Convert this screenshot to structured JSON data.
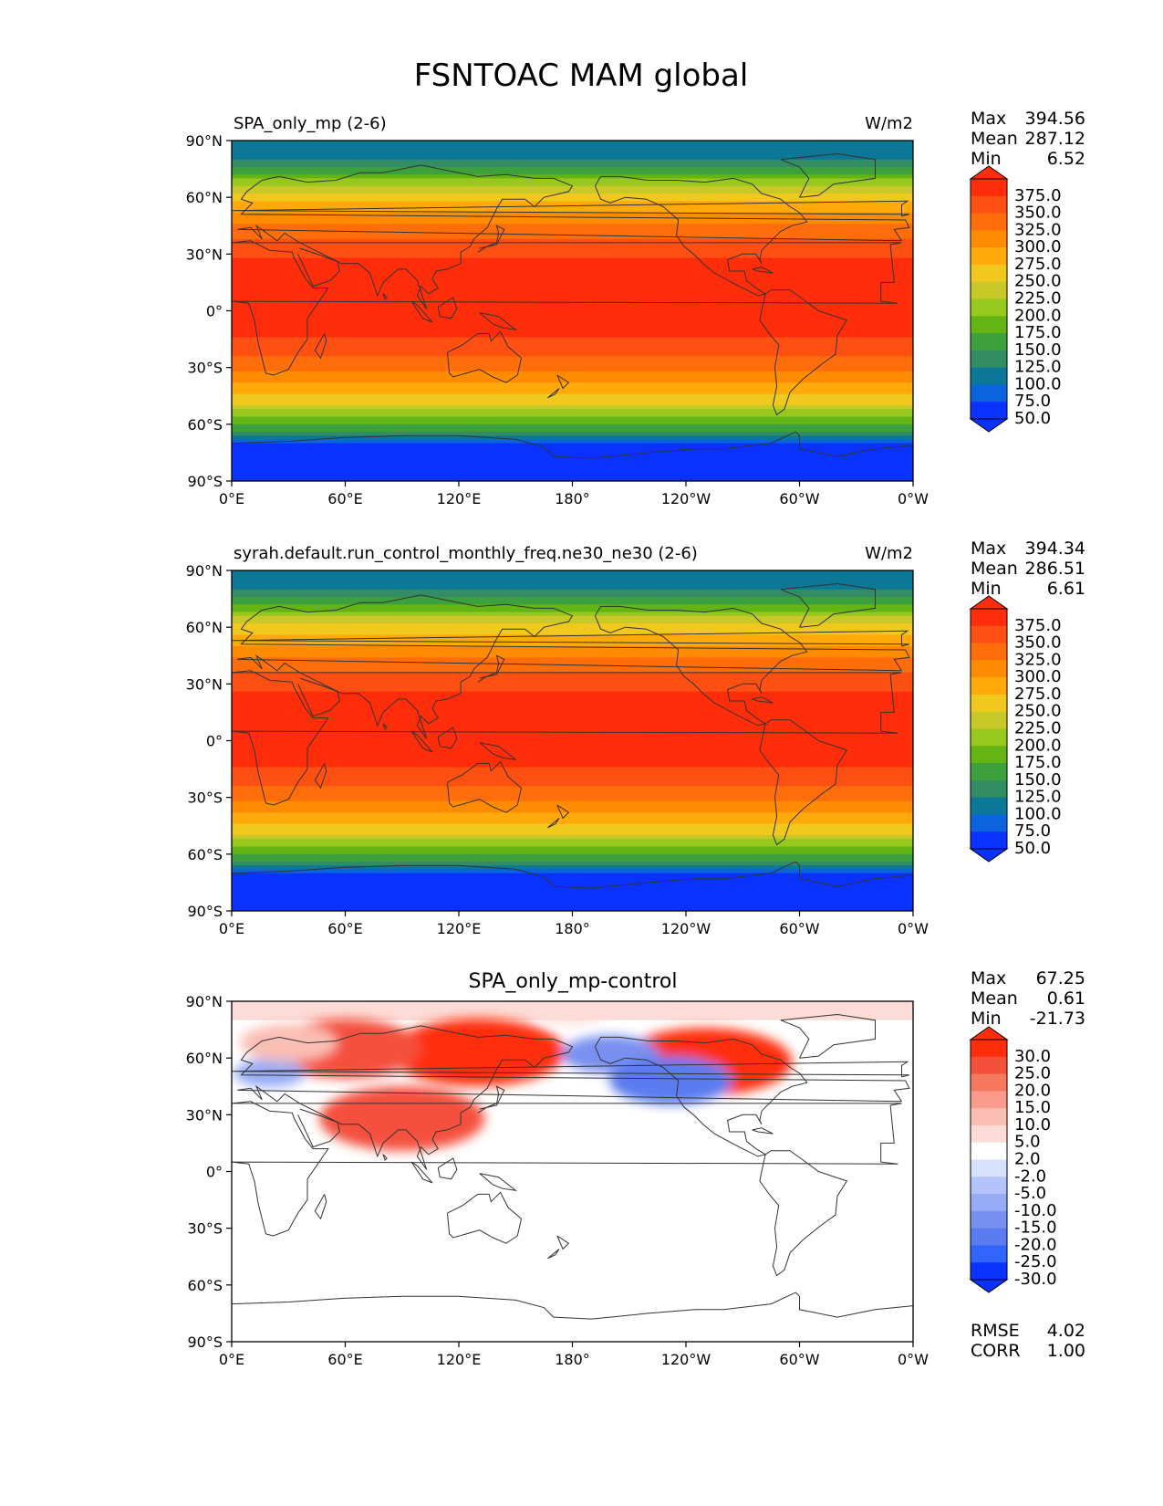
{
  "title": "FSNTOAC MAM global",
  "axes": {
    "lat_ticks": [
      "90°N",
      "60°N",
      "30°N",
      "0°",
      "30°S",
      "60°S",
      "90°S"
    ],
    "lon_ticks": [
      "0°E",
      "60°E",
      "120°E",
      "180°",
      "120°W",
      "60°W",
      "0°W"
    ]
  },
  "colors": {
    "abs_scale": [
      "#0a32ff",
      "#0a64dc",
      "#0a7896",
      "#328c64",
      "#3ca03c",
      "#64b414",
      "#96c81e",
      "#c8c828",
      "#f0c81e",
      "#ffaa0a",
      "#ff8c00",
      "#ff6e0a",
      "#ff5014",
      "#ff2d0a"
    ],
    "diff_scale": [
      "#0a32ff",
      "#3264ff",
      "#5a7cf0",
      "#7890f0",
      "#96aaf5",
      "#b4c3fa",
      "#d7e1fc",
      "#ffffff",
      "#fddcd7",
      "#fbbeb4",
      "#fa9b8c",
      "#f5785f",
      "#f5503c",
      "#ff2d0a"
    ],
    "coast": "#333333"
  },
  "chart_data": [
    {
      "type": "heatmap",
      "panel": "test",
      "title_left": "SPA_only_mp (2-6)",
      "units": "W/m2",
      "stats": {
        "max_label": "Max",
        "max": "394.56",
        "mean_label": "Mean",
        "mean": "287.12",
        "min_label": "Min",
        "min": "6.52"
      },
      "colorbar_ticks": [
        "375.0",
        "350.0",
        "325.0",
        "300.0",
        "275.0",
        "250.0",
        "225.0",
        "200.0",
        "175.0",
        "150.0",
        "125.0",
        "100.0",
        "75.0",
        "50.0"
      ],
      "colorbar_levels": [
        25,
        50,
        75,
        100,
        125,
        150,
        175,
        200,
        225,
        250,
        275,
        300,
        325,
        350,
        375,
        400
      ],
      "xlim": [
        0,
        360
      ],
      "ylim": [
        -90,
        90
      ],
      "zonal_profile": {
        "lat": [
          90,
          80,
          70,
          60,
          50,
          40,
          30,
          20,
          10,
          0,
          -10,
          -20,
          -30,
          -40,
          -50,
          -60,
          -65,
          -70,
          -90
        ],
        "value": [
          95,
          100,
          170,
          240,
          280,
          320,
          340,
          375,
          390,
          380,
          360,
          335,
          305,
          270,
          220,
          150,
          120,
          40,
          20
        ]
      }
    },
    {
      "type": "heatmap",
      "panel": "reference",
      "title_left": "syrah.default.run_control_monthly_freq.ne30_ne30 (2-6)",
      "units": "W/m2",
      "stats": {
        "max_label": "Max",
        "max": "394.34",
        "mean_label": "Mean",
        "mean": "286.51",
        "min_label": "Min",
        "min": "6.61"
      },
      "colorbar_ticks": [
        "375.0",
        "350.0",
        "325.0",
        "300.0",
        "275.0",
        "250.0",
        "225.0",
        "200.0",
        "175.0",
        "150.0",
        "125.0",
        "100.0",
        "75.0",
        "50.0"
      ],
      "colorbar_levels": [
        25,
        50,
        75,
        100,
        125,
        150,
        175,
        200,
        225,
        250,
        275,
        300,
        325,
        350,
        375,
        400
      ],
      "xlim": [
        0,
        360
      ],
      "ylim": [
        -90,
        90
      ],
      "zonal_profile": {
        "lat": [
          90,
          80,
          70,
          60,
          50,
          40,
          30,
          20,
          10,
          0,
          -10,
          -20,
          -30,
          -40,
          -50,
          -60,
          -65,
          -70,
          -90
        ],
        "value": [
          95,
          100,
          165,
          235,
          275,
          318,
          338,
          374,
          390,
          380,
          360,
          335,
          305,
          270,
          220,
          150,
          120,
          40,
          20
        ]
      }
    },
    {
      "type": "heatmap",
      "panel": "difference",
      "title_center": "SPA_only_mp-control",
      "stats": {
        "max_label": "Max",
        "max": "67.25",
        "mean_label": "Mean",
        "mean": "0.61",
        "min_label": "Min",
        "min": "-21.73"
      },
      "colorbar_ticks": [
        "30.0",
        "25.0",
        "20.0",
        "15.0",
        "10.0",
        "5.0",
        "2.0",
        "-2.0",
        "-5.0",
        "-10.0",
        "-15.0",
        "-20.0",
        "-25.0",
        "-30.0"
      ],
      "colorbar_levels": [
        -30,
        -25,
        -20,
        -15,
        -10,
        -5,
        -2,
        2,
        5,
        10,
        15,
        20,
        25,
        30
      ],
      "metrics": {
        "rmse_label": "RMSE",
        "rmse": "4.02",
        "corr_label": "CORR",
        "corr": "1.00"
      },
      "xlim": [
        0,
        360
      ],
      "ylim": [
        -90,
        90
      ],
      "anomalies": [
        {
          "lon": 130,
          "lat": 63,
          "value": 30
        },
        {
          "lon": 60,
          "lat": 65,
          "value": 25
        },
        {
          "lon": 90,
          "lat": 28,
          "value": 28
        },
        {
          "lon": 250,
          "lat": 58,
          "value": 30
        },
        {
          "lon": 200,
          "lat": 62,
          "value": -12
        },
        {
          "lon": 232,
          "lat": 48,
          "value": -18
        },
        {
          "lon": 20,
          "lat": 52,
          "value": -6
        },
        {
          "lon": 30,
          "lat": 68,
          "value": 12
        },
        {
          "lon": 180,
          "lat": 85,
          "value": 5
        }
      ]
    }
  ]
}
